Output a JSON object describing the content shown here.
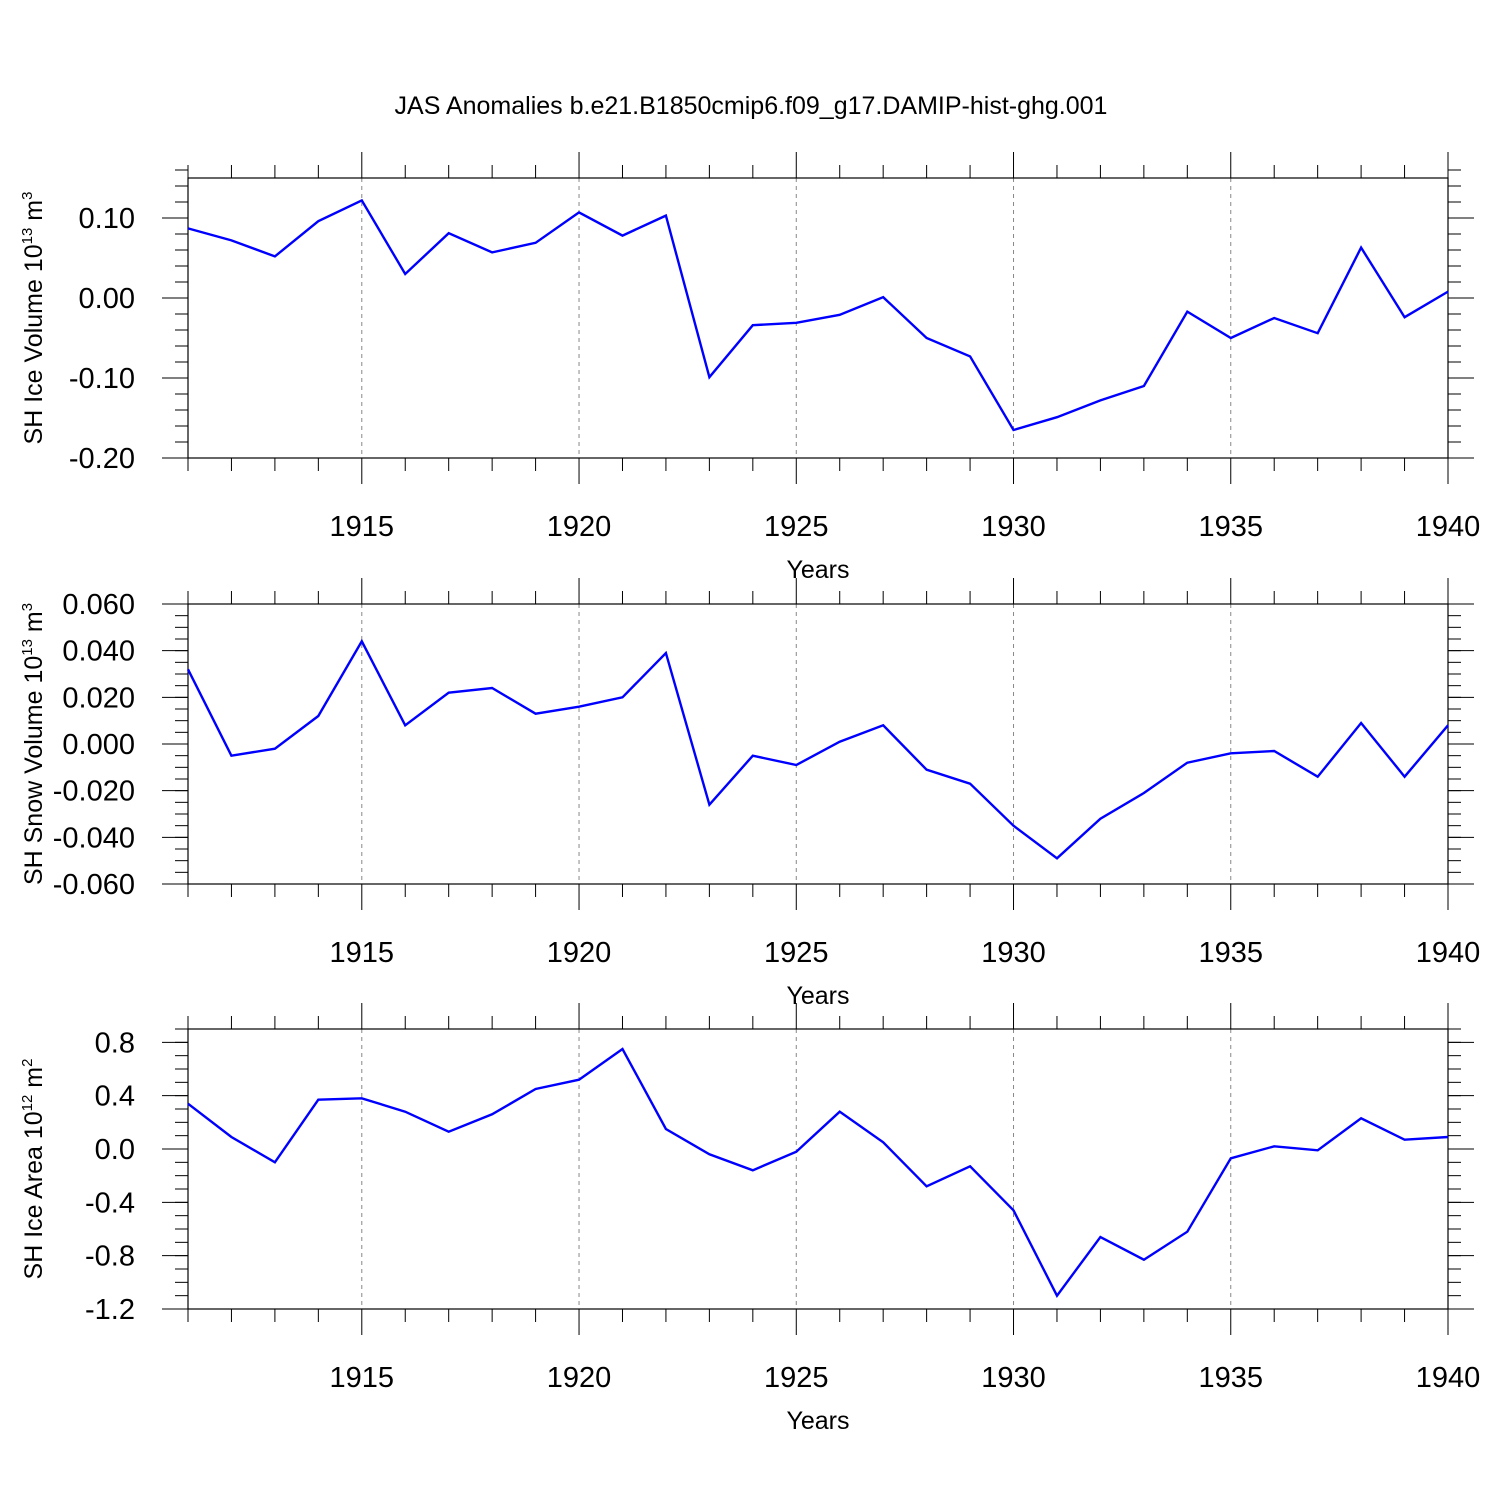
{
  "title": "JAS Anomalies b.e21.B1850cmip6.f09_g17.DAMIP-hist-ghg.001",
  "chart_data": [
    {
      "type": "line",
      "xlabel": "Years",
      "ylabel": {
        "main": "SH Ice Volume 10",
        "sup": "13",
        "unit": " m",
        "unit_sup": "3"
      },
      "xlim": [
        1911,
        1940
      ],
      "ylim": [
        -0.2,
        0.15
      ],
      "xticks": [
        "1915",
        "1920",
        "1925",
        "1930",
        "1935",
        "1940"
      ],
      "xtick_values": [
        1915,
        1920,
        1925,
        1930,
        1935,
        1940
      ],
      "yticks": [
        "0.10",
        "0.00",
        "-0.10",
        "-0.20"
      ],
      "ytick_values": [
        0.1,
        0.0,
        -0.1,
        -0.2
      ],
      "ytick_minor": 0.02,
      "grid": "vertical dashed at major x ticks",
      "line_color": "#0000ff",
      "x": [
        1911,
        1912,
        1913,
        1914,
        1915,
        1916,
        1917,
        1918,
        1919,
        1920,
        1921,
        1922,
        1923,
        1924,
        1925,
        1926,
        1927,
        1928,
        1929,
        1930,
        1931,
        1932,
        1933,
        1934,
        1935,
        1936,
        1937,
        1938,
        1939,
        1940
      ],
      "values": [
        0.087,
        0.072,
        0.052,
        0.096,
        0.122,
        0.03,
        0.081,
        0.057,
        0.069,
        0.107,
        0.078,
        0.103,
        -0.099,
        -0.034,
        -0.031,
        -0.021,
        0.001,
        -0.05,
        -0.073,
        -0.165,
        -0.149,
        -0.128,
        -0.11,
        -0.017,
        -0.05,
        -0.025,
        -0.044,
        0.063,
        -0.024,
        0.008
      ]
    },
    {
      "type": "line",
      "xlabel": "Years",
      "ylabel": {
        "main": "SH Snow Volume 10",
        "sup": "13",
        "unit": " m",
        "unit_sup": "3"
      },
      "xlim": [
        1911,
        1940
      ],
      "ylim": [
        -0.06,
        0.06
      ],
      "xticks": [
        "1915",
        "1920",
        "1925",
        "1930",
        "1935",
        "1940"
      ],
      "xtick_values": [
        1915,
        1920,
        1925,
        1930,
        1935,
        1940
      ],
      "yticks": [
        "0.060",
        "0.040",
        "0.020",
        "0.000",
        "-0.020",
        "-0.040",
        "-0.060"
      ],
      "ytick_values": [
        0.06,
        0.04,
        0.02,
        0.0,
        -0.02,
        -0.04,
        -0.06
      ],
      "ytick_minor": 0.005,
      "grid": "vertical dashed at major x ticks",
      "line_color": "#0000ff",
      "x": [
        1911,
        1912,
        1913,
        1914,
        1915,
        1916,
        1917,
        1918,
        1919,
        1920,
        1921,
        1922,
        1923,
        1924,
        1925,
        1926,
        1927,
        1928,
        1929,
        1930,
        1931,
        1932,
        1933,
        1934,
        1935,
        1936,
        1937,
        1938,
        1939,
        1940
      ],
      "values": [
        0.032,
        -0.005,
        -0.002,
        0.012,
        0.044,
        0.008,
        0.022,
        0.024,
        0.013,
        0.016,
        0.02,
        0.039,
        -0.026,
        -0.005,
        -0.009,
        0.001,
        0.008,
        -0.011,
        -0.017,
        -0.035,
        -0.049,
        -0.032,
        -0.021,
        -0.008,
        -0.004,
        -0.003,
        -0.014,
        0.009,
        -0.014,
        0.008
      ]
    },
    {
      "type": "line",
      "xlabel": "Years",
      "ylabel": {
        "main": "SH Ice Area 10",
        "sup": "12",
        "unit": " m",
        "unit_sup": "2"
      },
      "xlim": [
        1911,
        1940
      ],
      "ylim": [
        -1.2,
        0.9
      ],
      "xticks": [
        "1915",
        "1920",
        "1925",
        "1930",
        "1935",
        "1940"
      ],
      "xtick_values": [
        1915,
        1920,
        1925,
        1930,
        1935,
        1940
      ],
      "yticks": [
        "0.8",
        "0.4",
        "0.0",
        "-0.4",
        "-0.8",
        "-1.2"
      ],
      "ytick_values": [
        0.8,
        0.4,
        0.0,
        -0.4,
        -0.8,
        -1.2
      ],
      "ytick_minor": 0.1,
      "grid": "vertical dashed at major x ticks",
      "line_color": "#0000ff",
      "x": [
        1911,
        1912,
        1913,
        1914,
        1915,
        1916,
        1917,
        1918,
        1919,
        1920,
        1921,
        1922,
        1923,
        1924,
        1925,
        1926,
        1927,
        1928,
        1929,
        1930,
        1931,
        1932,
        1933,
        1934,
        1935,
        1936,
        1937,
        1938,
        1939,
        1940
      ],
      "values": [
        0.34,
        0.09,
        -0.1,
        0.37,
        0.38,
        0.28,
        0.13,
        0.26,
        0.45,
        0.52,
        0.75,
        0.15,
        -0.04,
        -0.16,
        -0.02,
        0.28,
        0.05,
        -0.28,
        -0.13,
        -0.46,
        -1.1,
        -0.66,
        -0.83,
        -0.62,
        -0.07,
        0.02,
        -0.01,
        0.23,
        0.07,
        0.09
      ]
    }
  ]
}
